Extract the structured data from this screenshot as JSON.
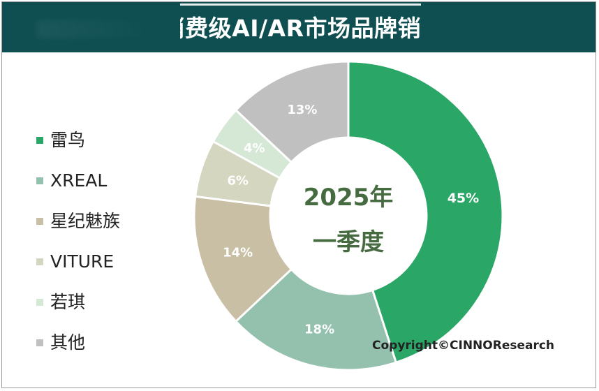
{
  "header": {
    "title": "消费级AI/AR市场品牌销"
  },
  "center_label": {
    "line1": "2025年",
    "line2": "一季度"
  },
  "copyright": "Copyright©CINNOResearch",
  "chart_data": {
    "type": "pie",
    "title": "消费级AI/AR市场品牌销",
    "legend_position": "left",
    "donut": true,
    "categories": [
      "雷鸟",
      "XREAL",
      "星纪魅族",
      "VITURE",
      "若琪",
      "其他"
    ],
    "values": [
      45,
      18,
      14,
      6,
      4,
      13
    ],
    "data_labels": [
      "45%",
      "18%",
      "14%",
      "6%",
      "4%",
      "13%"
    ],
    "colors": [
      "#2aa666",
      "#93c1ad",
      "#c9bfa4",
      "#d4d6bf",
      "#d5e8d6",
      "#c0c0c0"
    ]
  }
}
